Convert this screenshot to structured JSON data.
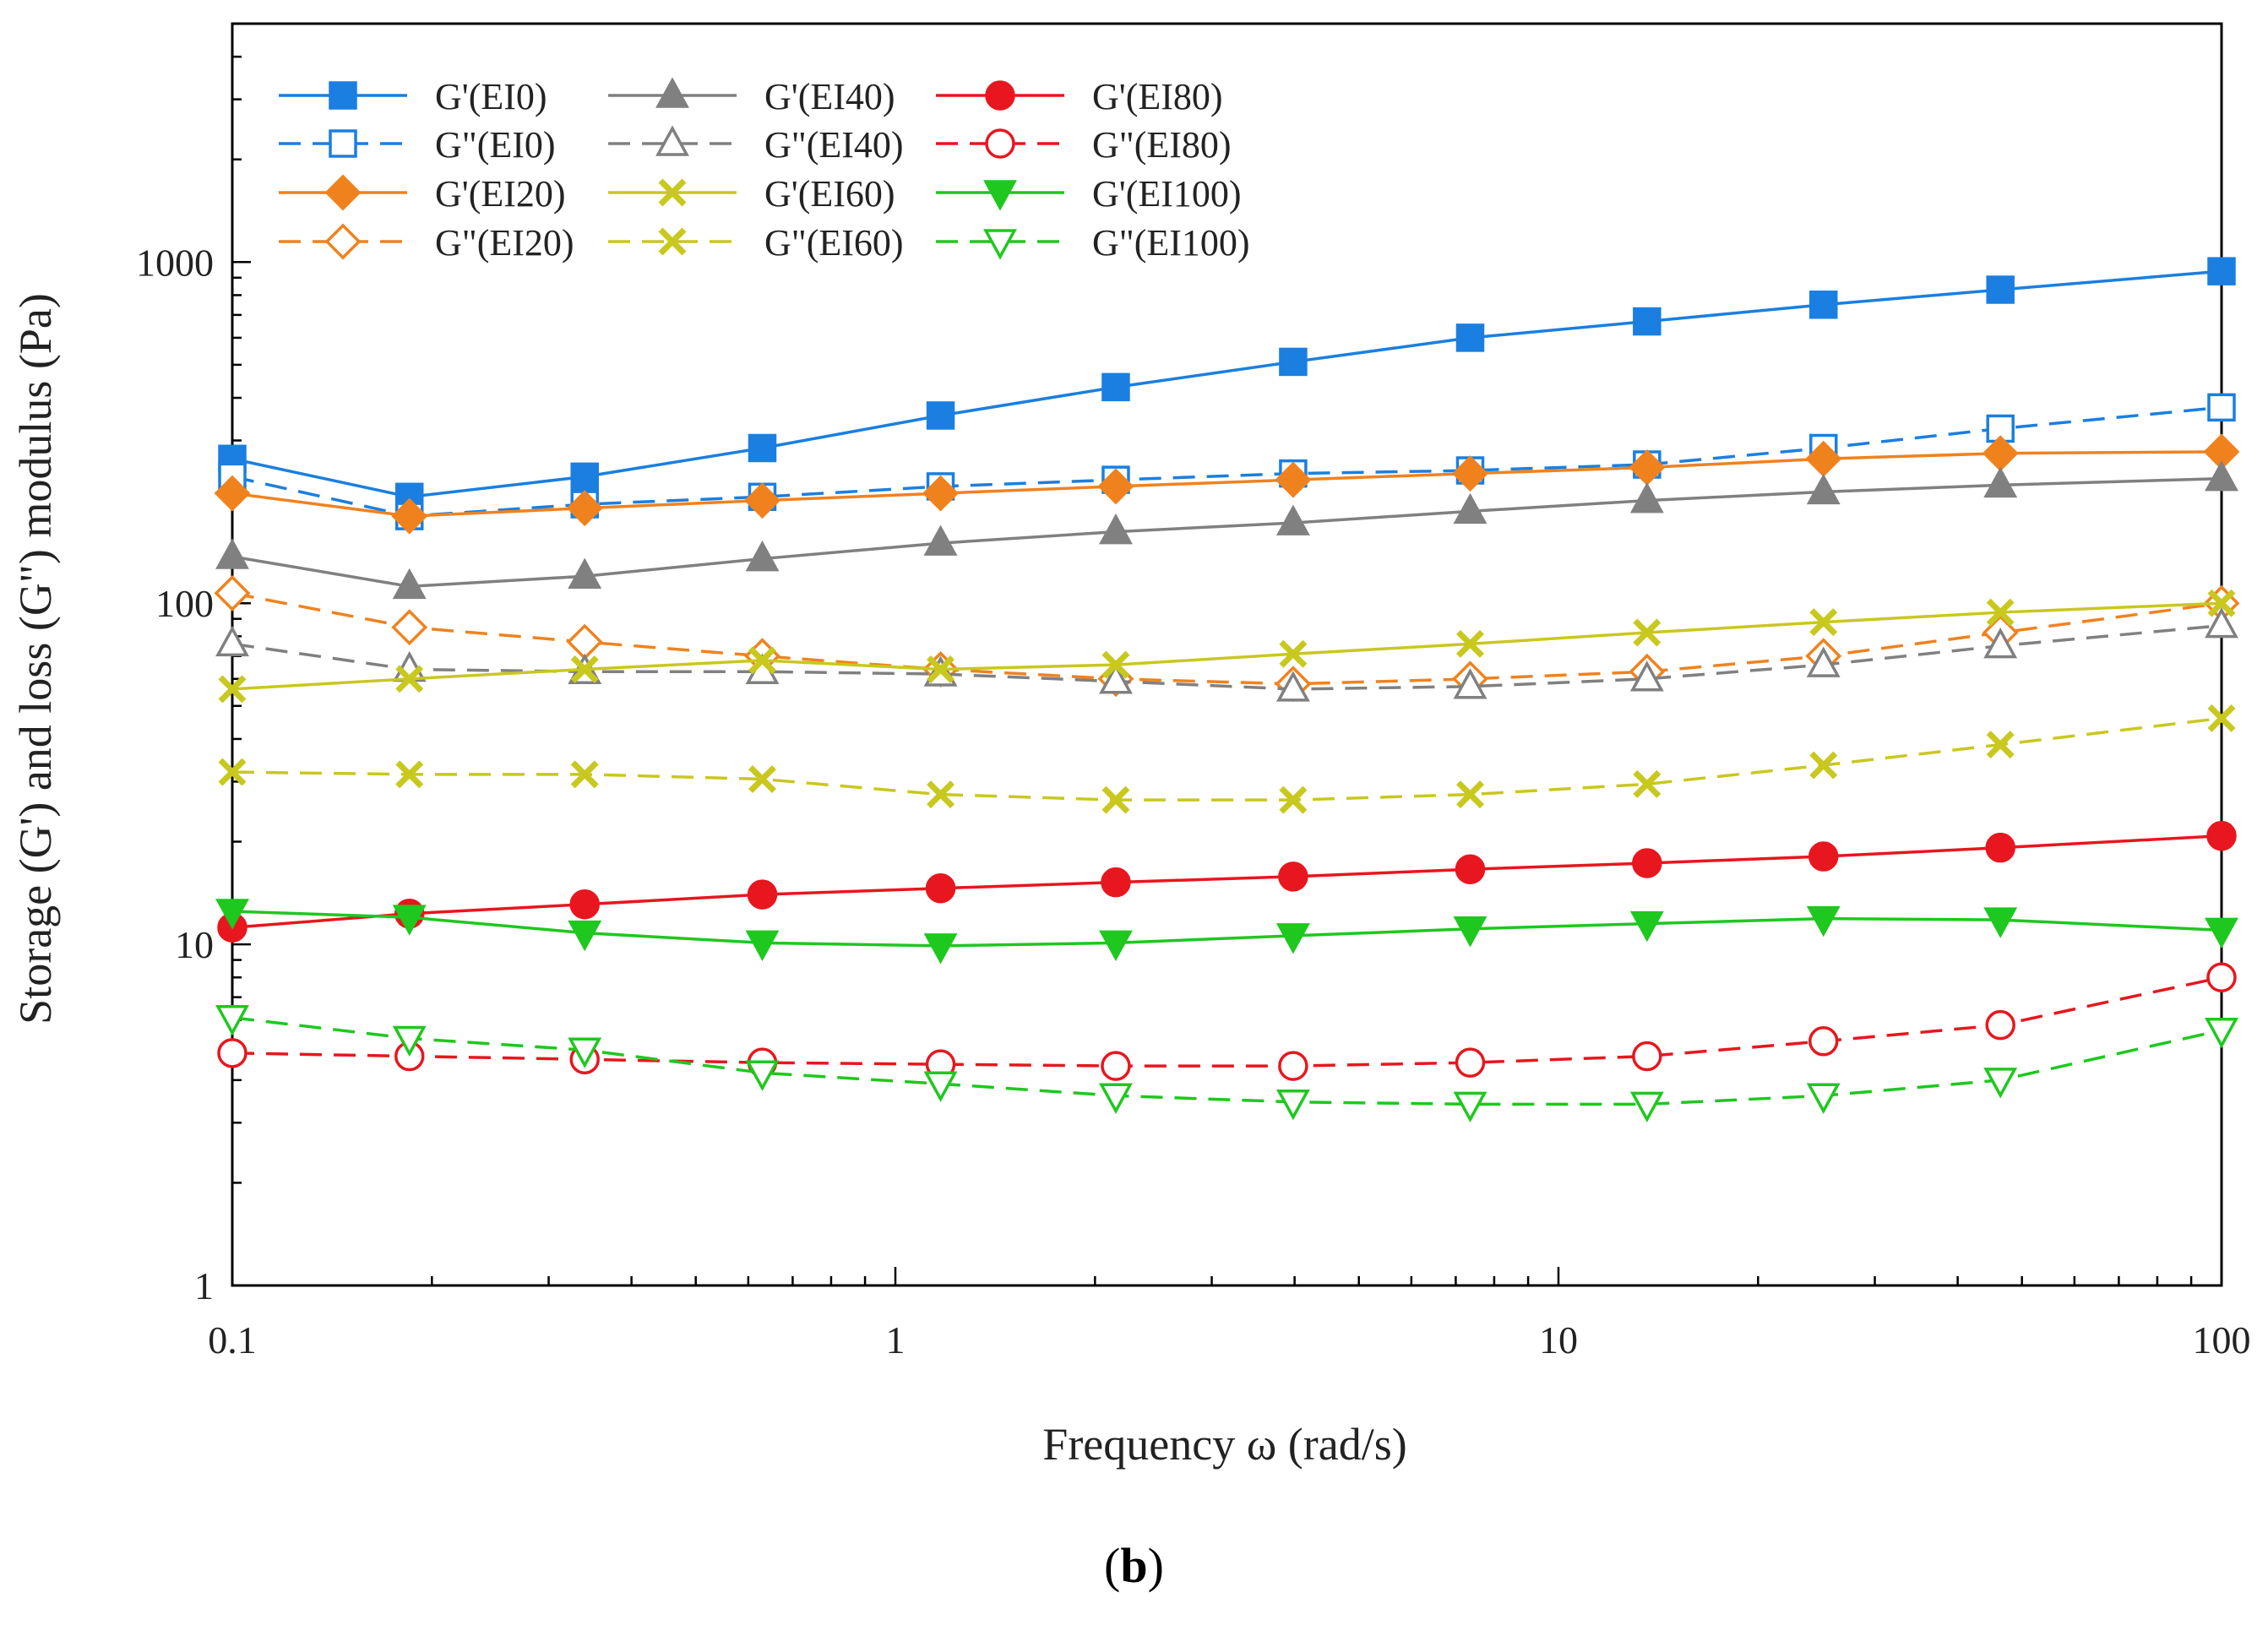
{
  "chart_data": {
    "type": "line",
    "x_scale": "log",
    "y_scale": "log",
    "xlabel": "Frequency ω (rad/s)",
    "ylabel": "Storage (G') and loss (G\") modulus (Pa)",
    "xlim": [
      0.1,
      100
    ],
    "ylim": [
      1,
      5000
    ],
    "x_ticks": [
      "0.1",
      "1",
      "10",
      "100"
    ],
    "y_ticks": [
      "1",
      "10",
      "100",
      "1000"
    ],
    "grid": false,
    "legend_position": "top-left",
    "x": [
      0.1,
      0.185,
      0.34,
      0.63,
      1.17,
      2.15,
      3.98,
      7.36,
      13.6,
      25.1,
      46.4,
      100
    ],
    "series": [
      {
        "name": "G'(EI0)",
        "color": "#1a7fe0",
        "marker": "square",
        "filled": true,
        "dashed": false,
        "values": [
          265,
          205,
          235,
          285,
          355,
          430,
          510,
          600,
          670,
          750,
          830,
          940
        ]
      },
      {
        "name": "G\"(EI0)",
        "color": "#1a7fe0",
        "marker": "square",
        "filled": false,
        "dashed": true,
        "values": [
          235,
          180,
          195,
          205,
          220,
          230,
          240,
          245,
          255,
          285,
          325,
          375
        ]
      },
      {
        "name": "G'(EI20)",
        "color": "#f0821e",
        "marker": "diamond",
        "filled": true,
        "dashed": false,
        "values": [
          210,
          180,
          190,
          200,
          210,
          220,
          230,
          240,
          250,
          265,
          275,
          278
        ]
      },
      {
        "name": "G\"(EI20)",
        "color": "#f0821e",
        "marker": "diamond",
        "filled": false,
        "dashed": true,
        "values": [
          107,
          85,
          77,
          70,
          64,
          60,
          58,
          60,
          63,
          70,
          82,
          100
        ]
      },
      {
        "name": "G'(EI40)",
        "color": "#808080",
        "marker": "triangle-up",
        "filled": true,
        "dashed": false,
        "values": [
          137,
          112,
          120,
          135,
          150,
          162,
          172,
          186,
          200,
          212,
          222,
          232
        ]
      },
      {
        "name": "G\"(EI40)",
        "color": "#808080",
        "marker": "triangle-up",
        "filled": false,
        "dashed": true,
        "values": [
          76,
          64,
          63,
          63,
          62,
          59,
          56,
          57,
          60,
          66,
          75,
          86
        ]
      },
      {
        "name": "G'(EI60)",
        "color": "#c8c81e",
        "marker": "x",
        "filled": true,
        "dashed": false,
        "values": [
          56,
          60,
          64,
          68,
          64,
          66,
          71,
          76,
          82,
          88,
          94,
          100
        ]
      },
      {
        "name": "G\"(EI60)",
        "color": "#c8c81e",
        "marker": "x",
        "filled": true,
        "dashed": true,
        "values": [
          32,
          31.5,
          31.5,
          30.5,
          27.5,
          26.5,
          26.5,
          27.5,
          29.5,
          33.5,
          38.5,
          46
        ]
      },
      {
        "name": "G'(EI80)",
        "color": "#e8161e",
        "marker": "circle",
        "filled": true,
        "dashed": false,
        "values": [
          11.2,
          12.3,
          13.1,
          14,
          14.6,
          15.2,
          15.8,
          16.6,
          17.3,
          18.1,
          19.2,
          20.8
        ]
      },
      {
        "name": "G\"(EI80)",
        "color": "#e8161e",
        "marker": "circle",
        "filled": false,
        "dashed": true,
        "values": [
          4.8,
          4.7,
          4.6,
          4.5,
          4.45,
          4.4,
          4.4,
          4.5,
          4.7,
          5.2,
          5.8,
          8
        ]
      },
      {
        "name": "G'(EI100)",
        "color": "#1ec81e",
        "marker": "triangle-down",
        "filled": true,
        "dashed": false,
        "values": [
          12.5,
          12,
          10.8,
          10.1,
          9.9,
          10.1,
          10.6,
          11.1,
          11.5,
          11.9,
          11.8,
          11
        ]
      },
      {
        "name": "G\"(EI100)",
        "color": "#1ec81e",
        "marker": "triangle-down",
        "filled": false,
        "dashed": true,
        "values": [
          6.1,
          5.3,
          4.9,
          4.2,
          3.9,
          3.6,
          3.45,
          3.4,
          3.4,
          3.6,
          4,
          5.6
        ]
      }
    ]
  },
  "caption": {
    "label": "b"
  }
}
